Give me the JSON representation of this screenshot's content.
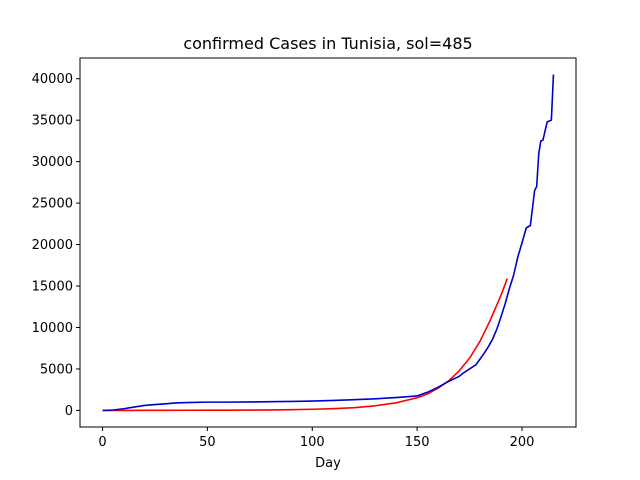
{
  "chart_data": {
    "type": "line",
    "title": "confirmed Cases in Tunisia, sol=485",
    "xlabel": "Day",
    "ylabel": "",
    "xlim": [
      -10.75,
      225.75
    ],
    "ylim": [
      -2000,
      42500
    ],
    "xticks": [
      0,
      50,
      100,
      150,
      200
    ],
    "yticks": [
      0,
      5000,
      10000,
      15000,
      20000,
      25000,
      30000,
      35000,
      40000
    ],
    "grid": false,
    "series": [
      {
        "color": "#ff0000",
        "x": [
          0,
          10,
          20,
          30,
          40,
          50,
          60,
          70,
          80,
          90,
          100,
          110,
          120,
          130,
          140,
          150,
          155,
          160,
          165,
          170,
          175,
          180,
          185,
          190,
          193
        ],
        "y": [
          0,
          0,
          10,
          15,
          20,
          25,
          30,
          40,
          60,
          90,
          140,
          210,
          330,
          560,
          920,
          1530,
          2000,
          2680,
          3560,
          4750,
          6300,
          8350,
          10950,
          13900,
          15900
        ]
      },
      {
        "color": "#0000cc",
        "x": [
          0,
          5,
          10,
          15,
          20,
          25,
          30,
          35,
          40,
          50,
          60,
          70,
          80,
          90,
          100,
          110,
          120,
          130,
          140,
          150,
          155,
          160,
          165,
          170,
          172,
          175,
          178,
          180,
          182,
          184,
          186,
          188,
          190,
          192,
          194,
          196,
          198,
          200,
          202,
          204,
          206,
          207,
          208,
          209,
          210,
          212,
          213,
          214,
          215
        ],
        "y": [
          0,
          50,
          200,
          400,
          600,
          700,
          800,
          900,
          950,
          1000,
          1000,
          1020,
          1050,
          1080,
          1130,
          1200,
          1300,
          1400,
          1550,
          1750,
          2200,
          2800,
          3500,
          4100,
          4500,
          5000,
          5500,
          6200,
          6900,
          7700,
          8600,
          9800,
          11300,
          12900,
          14700,
          16300,
          18500,
          20200,
          22000,
          22300,
          26500,
          27000,
          31000,
          32500,
          32600,
          34800,
          34900,
          35000,
          40500
        ]
      }
    ]
  }
}
